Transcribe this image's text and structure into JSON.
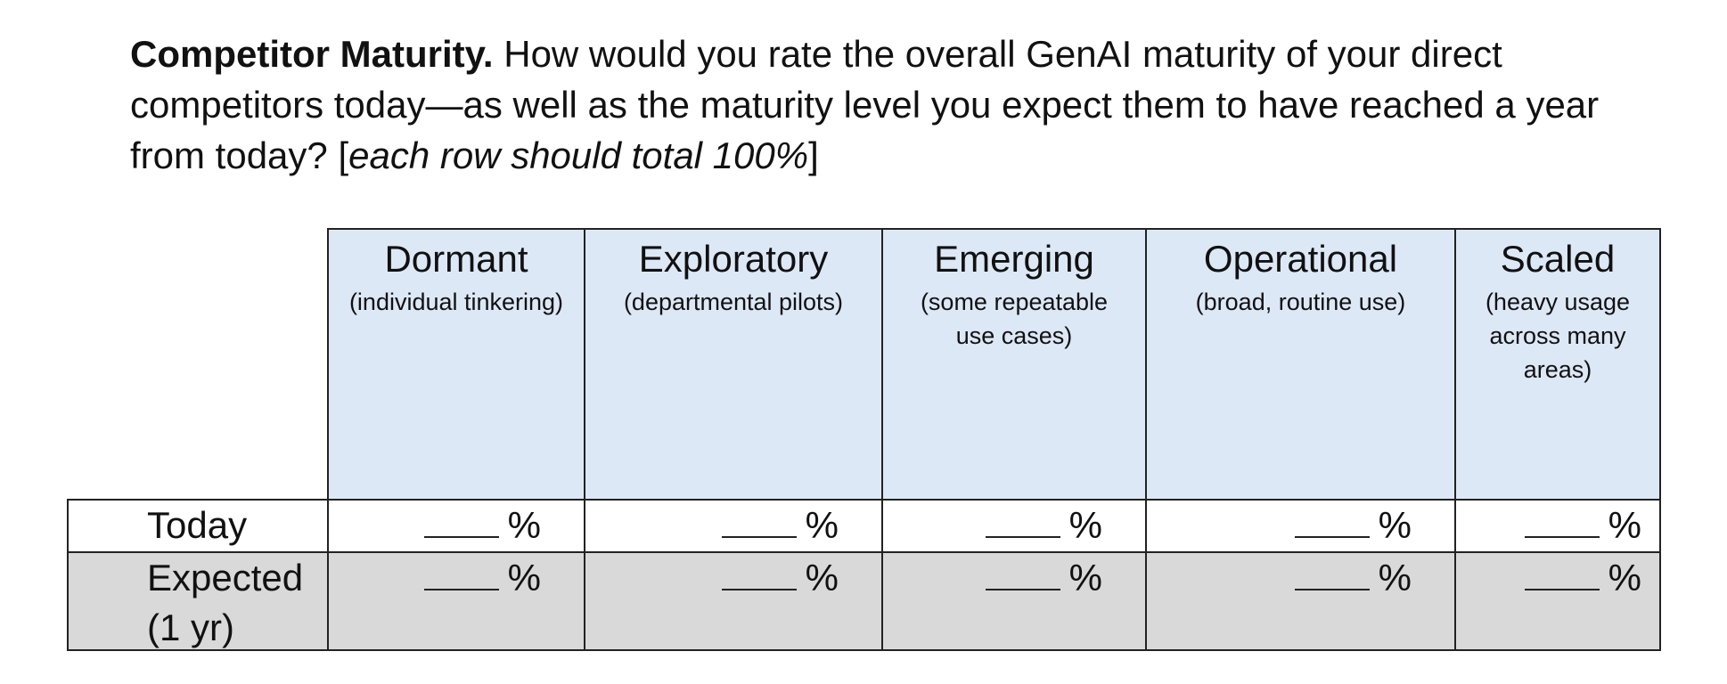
{
  "question": {
    "title": "Competitor Maturity.",
    "text": " How would you rate the overall GenAI maturity of your direct competitors today—as well as the maturity level you expect them to have reached a year from today? [",
    "instruction": "each row should total 100%",
    "close": "]"
  },
  "table": {
    "columns": [
      {
        "title": "Dormant",
        "desc": "(individual tinkering)"
      },
      {
        "title": "Exploratory",
        "desc": "(departmental pilots)"
      },
      {
        "title": "Emerging",
        "desc": "(some repeatable use cases)"
      },
      {
        "title": "Operational",
        "desc": "(broad, routine use)"
      },
      {
        "title": "Scaled",
        "desc": "(heavy usage across many areas)"
      }
    ],
    "rows": [
      {
        "label": "Today",
        "unit": "%"
      },
      {
        "label": "Expected (1 yr)",
        "unit": "%"
      }
    ]
  }
}
